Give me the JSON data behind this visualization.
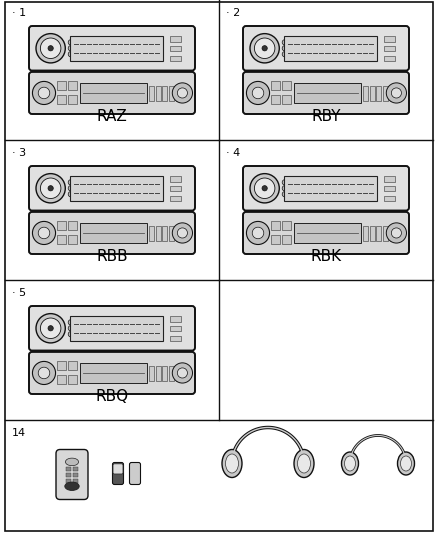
{
  "background": "#ffffff",
  "line_color": "#111111",
  "row_tops": [
    533,
    393,
    253,
    113,
    0
  ],
  "col_split": 219,
  "border": [
    5,
    2,
    428,
    529
  ],
  "cells": [
    {
      "row": 0,
      "col": 0,
      "num": "1",
      "label": "RAZ"
    },
    {
      "row": 0,
      "col": 1,
      "num": "2",
      "label": "RBY"
    },
    {
      "row": 1,
      "col": 0,
      "num": "3",
      "label": "RBB"
    },
    {
      "row": 1,
      "col": 1,
      "num": "4",
      "label": "RBK"
    },
    {
      "row": 2,
      "col": 0,
      "num": "5",
      "label": "RBQ"
    }
  ],
  "accessories_num": "14",
  "label_fontsize": 11,
  "num_fontsize": 8
}
